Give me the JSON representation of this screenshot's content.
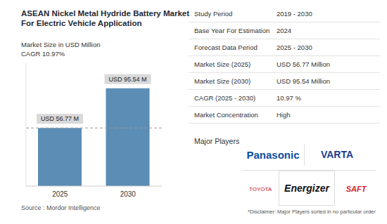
{
  "chart_data": {
    "type": "bar",
    "title": "ASEAN Nickel Metal Hydride Battery Market For Electric Vehicle Application",
    "subtitle": "Market Size in USD Million",
    "annotations": [
      "CAGR 10.97%"
    ],
    "categories": [
      "2025",
      "2030"
    ],
    "values": [
      56.77,
      95.54
    ],
    "value_labels": [
      "USD 56.77 M",
      "USD 95.54 M"
    ],
    "data_labels": true,
    "color": "#5b8db5",
    "ylim": [
      0,
      120
    ],
    "tick_labels": "x",
    "grid": false
  },
  "info_table": {
    "rows": [
      [
        "Study Period",
        "2019 - 2030"
      ],
      [
        "Base Year For Estimation",
        "2024"
      ],
      [
        "Forecast Data Period",
        "2025 - 2030"
      ],
      [
        "Market Size (2025)",
        "USD 56.77 Million"
      ],
      [
        "Market Size (2030)",
        "USD 95.54 Million"
      ],
      [
        "CAGR (2025 - 2030)",
        "10.97 %"
      ],
      [
        "Market Concentration",
        "High"
      ]
    ]
  },
  "major_players": {
    "title": "Major Players",
    "players": [
      "Panasonic",
      "VARTA",
      "TOYOTA",
      "Energizer",
      "SAFT"
    ]
  },
  "source": "Source : Mordor Intelligence",
  "disclaimer": "*Disclaimer: Major Players sorted in no particular order"
}
